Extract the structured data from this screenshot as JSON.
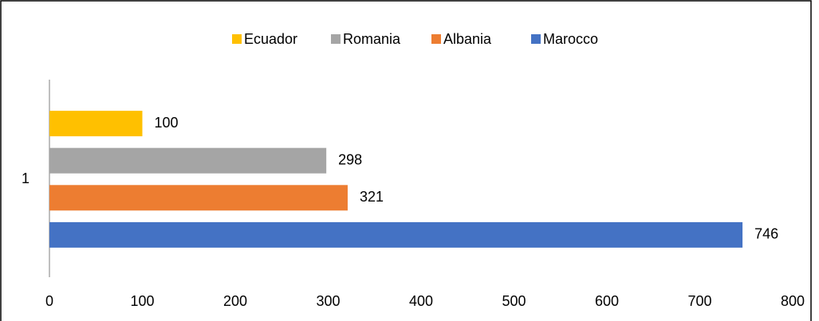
{
  "chart_data": {
    "type": "bar",
    "orientation": "horizontal",
    "categories": [
      "1"
    ],
    "series": [
      {
        "name": "Ecuador",
        "color": "#ffc000",
        "values": [
          100
        ]
      },
      {
        "name": "Romania",
        "color": "#a5a5a5",
        "values": [
          298
        ]
      },
      {
        "name": "Albania",
        "color": "#ed7d31",
        "values": [
          321
        ]
      },
      {
        "name": "Marocco",
        "color": "#4472c4",
        "values": [
          746
        ]
      }
    ],
    "xlim": [
      0,
      800
    ],
    "xticks": [
      0,
      100,
      200,
      300,
      400,
      500,
      600,
      700,
      800
    ],
    "grid": false,
    "legend": "top",
    "data_labels": true
  }
}
